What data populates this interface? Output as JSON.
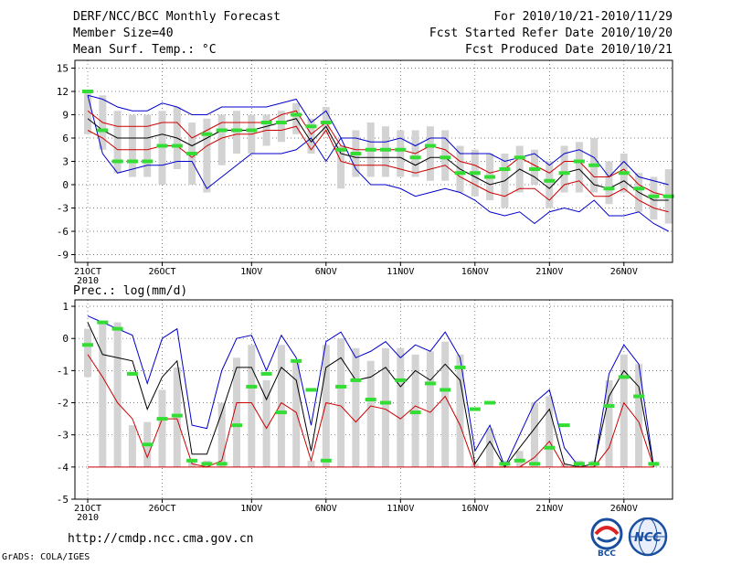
{
  "header": {
    "title": "DERF/NCC/BCC Monthly Forecast",
    "member_size": "Member Size=40",
    "variable1": "Mean Surf. Temp.: °C",
    "period": "For 2010/10/21-2010/11/29",
    "started": "Fcst Started Refer Date 2010/10/20",
    "produced": "Fcst Produced Date 2010/10/21"
  },
  "footer": {
    "url": "http://cmdp.ncc.cma.gov.cn",
    "credit": "GrADS: COLA/IGES",
    "logo_left": "BCC",
    "logo_right": "NCC"
  },
  "colors": {
    "max": "#0000cc",
    "sd": "#cc0000",
    "mean": "#000000",
    "bar": "#d3d3d3",
    "median": "#33dd33",
    "grid": "#555555"
  },
  "chart_data": [
    {
      "type": "box-line",
      "title": "Mean Surf. Temp.: °C",
      "xlabel": "",
      "ylabel": "",
      "ylim": [
        -10,
        16
      ],
      "yticks": [
        15,
        12,
        9,
        6,
        3,
        0,
        -3,
        -6,
        -9
      ],
      "xtick_labels": [
        "21OCT",
        "26OCT",
        "1NOV",
        "6NOV",
        "11NOV",
        "16NOV",
        "21NOV",
        "26NOV"
      ],
      "xtick_days": [
        1,
        6,
        12,
        17,
        22,
        27,
        32,
        37
      ],
      "year_label": "2010",
      "days": 40,
      "series": [
        {
          "name": "max",
          "color": "#0000cc",
          "values": [
            11.5,
            4,
            1.5,
            2,
            2.5,
            2.5,
            3,
            3,
            -0.5,
            1,
            2.5,
            4,
            4,
            4,
            4.5,
            6,
            3,
            6,
            2,
            0,
            0,
            -0.5,
            -1.5,
            -1,
            -0.5,
            -1,
            -2,
            -3.5,
            -4,
            -3.5,
            -5,
            -3.5,
            -3,
            -3.5,
            -2,
            -4,
            -4,
            -3.5,
            -5,
            -6
          ]
        },
        {
          "name": "upper",
          "color": "#0000cc",
          "values": [
            11.5,
            11,
            10,
            9.5,
            9.5,
            10.5,
            10,
            9,
            9,
            10,
            10,
            10,
            10,
            10.5,
            11,
            8,
            9.5,
            6,
            6,
            5.5,
            5.5,
            6,
            5,
            6,
            6,
            4,
            4,
            4,
            3,
            3.5,
            4,
            2.5,
            4,
            4.5,
            3.5,
            1,
            3,
            1,
            0.5,
            0
          ]
        },
        {
          "name": "sd+",
          "color": "#cc0000",
          "values": [
            9.5,
            8,
            7.5,
            7.5,
            7.5,
            8,
            8,
            6,
            7,
            8,
            8,
            8,
            8,
            9,
            9.5,
            6.5,
            8,
            5,
            4.5,
            4.5,
            4.5,
            4.5,
            4,
            5,
            4.5,
            3,
            2.5,
            1.5,
            2,
            3.5,
            2.5,
            1.5,
            3,
            3,
            1,
            1,
            2,
            0,
            -1,
            -1.5
          ]
        },
        {
          "name": "mean",
          "color": "#000000",
          "values": [
            8.5,
            7,
            6,
            6,
            6,
            6.5,
            6,
            5,
            6,
            7,
            7,
            7,
            7.5,
            8,
            8.5,
            5.5,
            7.5,
            4,
            3.5,
            3.5,
            3.5,
            3.5,
            2.5,
            3.5,
            3.5,
            2,
            1,
            0,
            0.5,
            2,
            1,
            -0.5,
            1.5,
            2,
            0,
            -0.5,
            0.5,
            -1,
            -2,
            -2
          ]
        },
        {
          "name": "sd-",
          "color": "#cc0000",
          "values": [
            7,
            6,
            4.5,
            4.5,
            4.5,
            5,
            5,
            3.5,
            5,
            6,
            6.5,
            6.5,
            7,
            7,
            7.5,
            4.5,
            7,
            3,
            2.5,
            2.5,
            2.5,
            2,
            1.5,
            2,
            2.5,
            1,
            0,
            -1,
            -1.5,
            -0.5,
            -0.5,
            -2,
            0,
            0.5,
            -1.5,
            -1.5,
            -0.5,
            -2,
            -3,
            -3.5
          ]
        }
      ],
      "boxes": {
        "low": [
          6.5,
          4.5,
          1.5,
          1,
          1,
          0,
          2,
          0,
          -1,
          2.5,
          4,
          4,
          5,
          5.5,
          6.5,
          4,
          6.5,
          -0.5,
          1,
          1,
          1,
          1,
          1,
          0.5,
          0.5,
          -1,
          -1.5,
          -2,
          -3,
          -1,
          0,
          -3,
          -1,
          -1,
          -1,
          -2.5,
          -1,
          -3.5,
          -4.5,
          -5
        ],
        "high": [
          12,
          11.5,
          9.5,
          9,
          9,
          9.5,
          10,
          8,
          8.5,
          9,
          9.5,
          9,
          9,
          9.5,
          10.5,
          8.5,
          10,
          5,
          7,
          8,
          7.5,
          7,
          7,
          7.5,
          7,
          5,
          4.5,
          4,
          4,
          5,
          4.5,
          3,
          5,
          5.5,
          6,
          3,
          4,
          1.5,
          1,
          2
        ]
      },
      "median": [
        12,
        7,
        3,
        3,
        3,
        5,
        5,
        4,
        6.5,
        7,
        7,
        7,
        8,
        8,
        9,
        7.5,
        8,
        4.5,
        4,
        4.5,
        4.5,
        4.5,
        3.5,
        5,
        3.5,
        1.5,
        1.5,
        1,
        2,
        3.5,
        2,
        0.5,
        1.5,
        3,
        2.5,
        -0.5,
        1.5,
        -0.5,
        -1.5,
        -1.5
      ]
    },
    {
      "type": "box-line",
      "title": "Prec.: log(mm/d)",
      "xlabel": "",
      "ylabel": "",
      "ylim": [
        -5,
        1.2
      ],
      "yticks": [
        1,
        0,
        -1,
        -2,
        -3,
        -4,
        -5
      ],
      "xtick_labels": [
        "21OCT",
        "26OCT",
        "1NOV",
        "6NOV",
        "11NOV",
        "16NOV",
        "21NOV",
        "26NOV"
      ],
      "xtick_days": [
        1,
        6,
        12,
        17,
        22,
        27,
        32,
        37
      ],
      "year_label": "2010",
      "days": 40,
      "series": [
        {
          "name": "upper",
          "color": "#0000cc",
          "values": [
            0.7,
            0.5,
            0.3,
            0.1,
            -1.4,
            0,
            0.3,
            -2.7,
            -2.8,
            -1,
            0,
            0.1,
            -1,
            0.1,
            -0.6,
            -2.7,
            -0.1,
            0.2,
            -0.6,
            -0.4,
            -0.1,
            -0.6,
            -0.2,
            -0.4,
            0.2,
            -0.6,
            -3.5,
            -2.7,
            -4,
            -3,
            -2,
            -1.6,
            -3.4,
            -4,
            -4,
            -1.1,
            -0.2,
            -0.8,
            -4
          ]
        },
        {
          "name": "mean",
          "color": "#000000",
          "values": [
            0.5,
            -0.5,
            -0.6,
            -0.7,
            -2.2,
            -1.2,
            -0.7,
            -3.6,
            -3.6,
            -2.3,
            -0.9,
            -0.9,
            -1.9,
            -0.9,
            -1.3,
            -3.5,
            -0.9,
            -0.6,
            -1.3,
            -1.2,
            -0.9,
            -1.5,
            -1,
            -1.3,
            -0.8,
            -1.3,
            -3.9,
            -3.2,
            -4,
            -3.4,
            -2.8,
            -2.2,
            -3.9,
            -4,
            -3.9,
            -1.8,
            -1,
            -1.5,
            -4
          ]
        },
        {
          "name": "lower",
          "color": "#cc0000",
          "values": [
            -0.5,
            -1.2,
            -2,
            -2.5,
            -3.7,
            -2.5,
            -2.5,
            -3.9,
            -4,
            -3.8,
            -2,
            -2,
            -2.8,
            -2,
            -2.3,
            -3.8,
            -2,
            -2.1,
            -2.6,
            -2.1,
            -2.2,
            -2.5,
            -2.1,
            -2.3,
            -1.8,
            -2.7,
            -4,
            -4,
            -4,
            -4,
            -3.7,
            -3.2,
            -4,
            -4,
            -4,
            -3.4,
            -2,
            -2.6,
            -4
          ]
        },
        {
          "name": "floor",
          "color": "#cc0000",
          "values": [
            -4,
            -4,
            -4,
            -4,
            -4,
            -4,
            -4,
            -4,
            -4,
            -4,
            -4,
            -4,
            -4,
            -4,
            -4,
            -4,
            -4,
            -4,
            -4,
            -4,
            -4,
            -4,
            -4,
            -4,
            -4,
            -4,
            -4,
            -4,
            -4,
            -4,
            -4,
            -4,
            -4,
            -4,
            -4,
            -4,
            -4,
            -4,
            -4
          ]
        }
      ],
      "boxes": {
        "low": [
          -1.2,
          -4,
          -4,
          -4,
          -4,
          -4,
          -4,
          -4,
          -4,
          -4,
          -4,
          -4,
          -4,
          -4,
          -4,
          -4,
          -4,
          -4,
          -4,
          -4,
          -4,
          -4,
          -4,
          -4,
          -4,
          -4,
          -4,
          -4,
          -4,
          -4,
          -4,
          -4,
          -4,
          -4,
          -4,
          -4,
          -4,
          -4,
          -4
        ],
        "high": [
          0.3,
          0.5,
          0.5,
          -2.7,
          -2.6,
          -1.6,
          -0.9,
          -3.8,
          -3.8,
          -2,
          -0.6,
          -0.2,
          -1.3,
          -0.2,
          -0.7,
          -3.8,
          -0.2,
          0,
          -0.3,
          -0.7,
          -0.3,
          -0.3,
          -0.5,
          -0.4,
          -0.1,
          -0.5,
          -3.9,
          -2.8,
          -3.8,
          -3.5,
          -2,
          -1.8,
          -3.9,
          -3.8,
          -3.8,
          -1.3,
          -0.5,
          -0.8,
          -3.9
        ]
      },
      "median": [
        -0.2,
        0.5,
        0.3,
        -1.1,
        -3.3,
        -2.5,
        -2.4,
        -3.8,
        -3.9,
        -3.9,
        -2.7,
        -1.5,
        -1.1,
        -2.3,
        -0.7,
        -1.6,
        -3.8,
        -1.5,
        -1.3,
        -1.9,
        -2,
        -1.3,
        -2.3,
        -1.4,
        -1.6,
        -0.9,
        -2.2,
        -2,
        -3.9,
        -3.8,
        -3.9,
        -3.4,
        -2.7,
        -3.9,
        -3.9,
        -2.1,
        -1.2,
        -1.8,
        -3.9
      ]
    }
  ]
}
